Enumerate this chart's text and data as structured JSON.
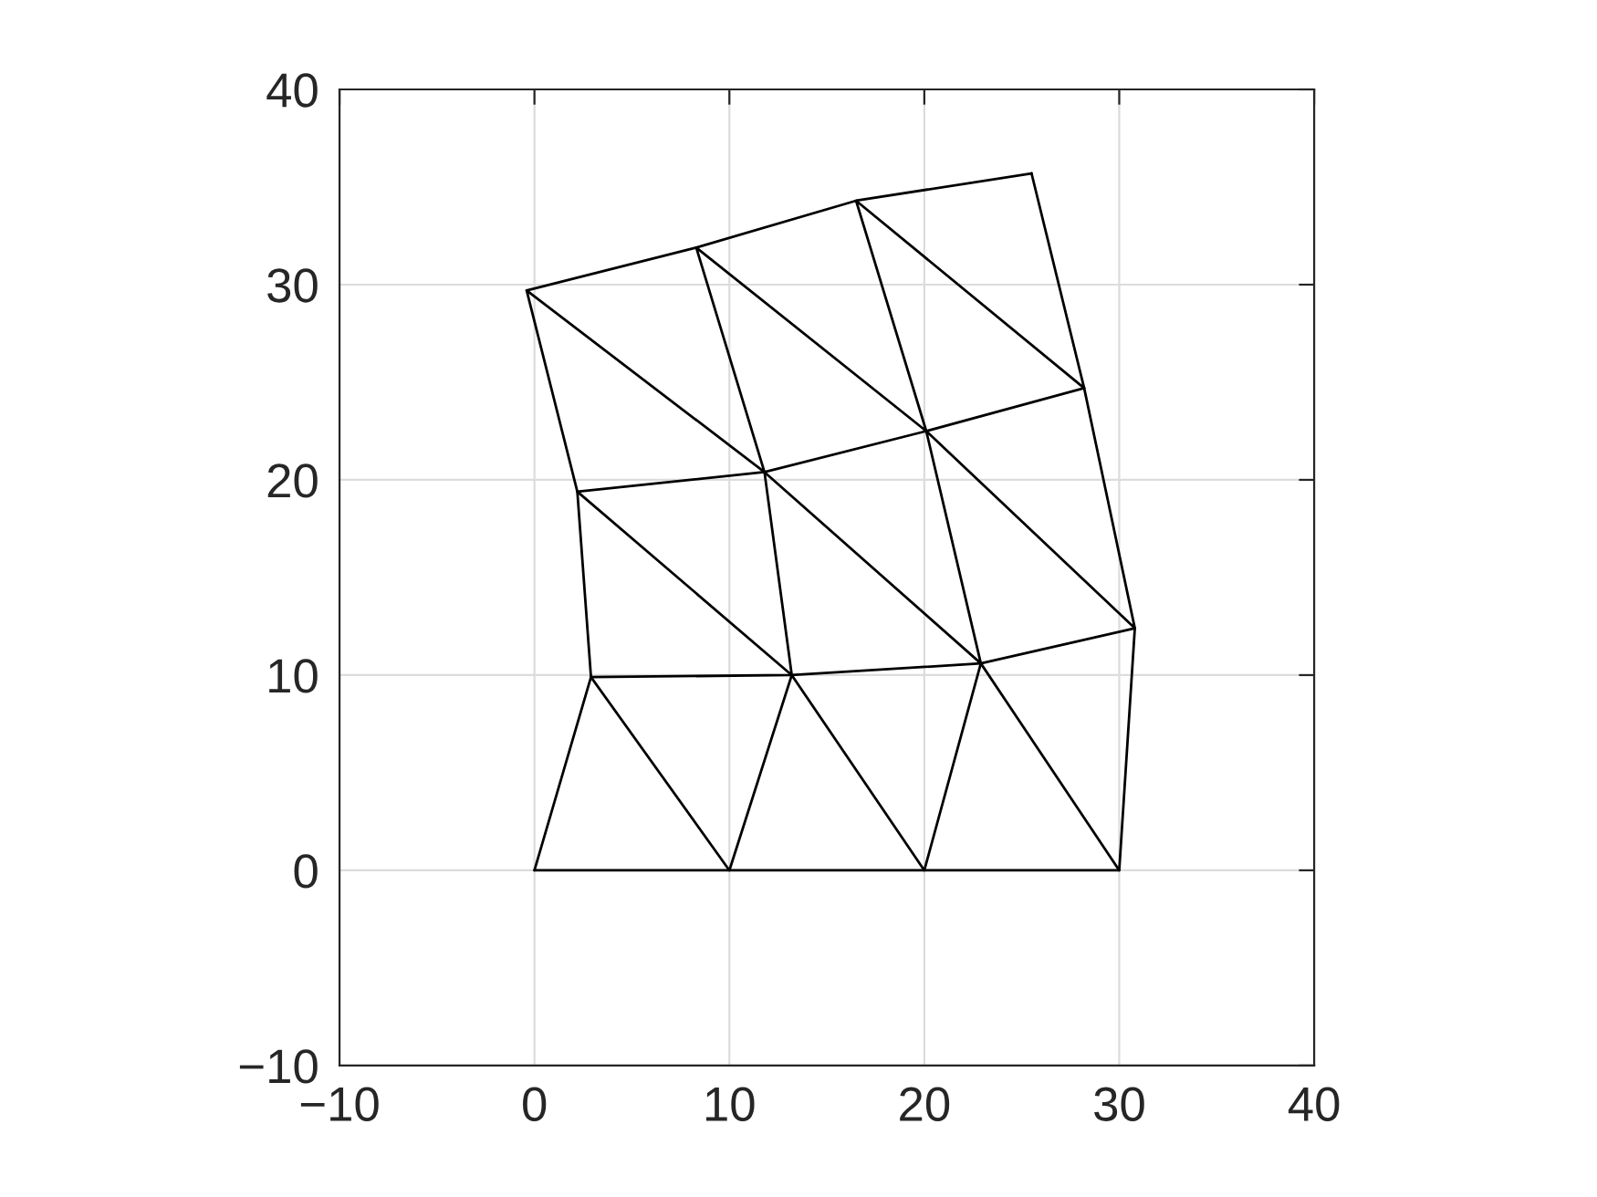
{
  "chart_data": {
    "type": "line",
    "xlim": [
      -10,
      40
    ],
    "ylim": [
      -10,
      40
    ],
    "xticks": [
      -10,
      0,
      10,
      20,
      30,
      40
    ],
    "yticks": [
      -10,
      0,
      10,
      20,
      30,
      40
    ],
    "grid": true,
    "legend": false,
    "series": [
      {
        "color": "#000000",
        "x": [
          0,
          30
        ],
        "values": [
          0,
          0
        ]
      },
      {
        "color": "#000000",
        "x": [
          0,
          2.9,
          10,
          13.2,
          20,
          22.9,
          30,
          30.8
        ],
        "values": [
          0,
          9.9,
          0,
          10,
          0,
          10.6,
          0,
          12.4
        ]
      },
      {
        "color": "#000000",
        "x": [
          2.9,
          13.2,
          22.9,
          30.8
        ],
        "values": [
          9.9,
          10,
          10.6,
          12.4
        ]
      },
      {
        "color": "#000000",
        "x": [
          2.9,
          2.2,
          13.2,
          11.8,
          22.9,
          20.1,
          30.8,
          28.2
        ],
        "values": [
          9.9,
          19.4,
          10,
          20.4,
          10.6,
          22.5,
          12.4,
          24.7
        ]
      },
      {
        "color": "#000000",
        "x": [
          2.2,
          11.8,
          20.1,
          28.2
        ],
        "values": [
          19.4,
          20.4,
          22.5,
          24.7
        ]
      },
      {
        "color": "#000000",
        "x": [
          2.2,
          -0.4,
          11.8,
          8.3,
          20.1,
          16.5,
          28.2,
          25.5
        ],
        "values": [
          19.4,
          29.7,
          20.4,
          31.9,
          22.5,
          34.3,
          24.7,
          35.7
        ]
      },
      {
        "color": "#000000",
        "x": [
          -0.4,
          8.3,
          16.5,
          25.5
        ],
        "values": [
          29.7,
          31.9,
          34.3,
          35.7
        ]
      }
    ]
  }
}
